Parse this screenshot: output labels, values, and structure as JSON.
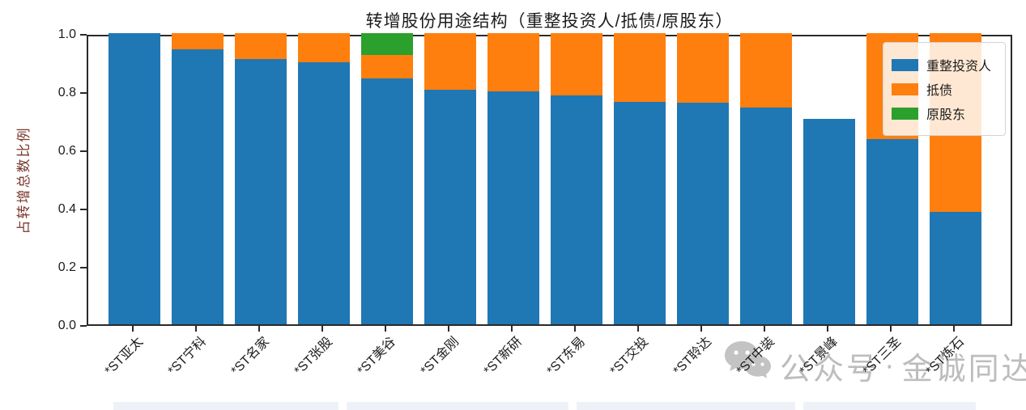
{
  "chart": {
    "title": "转增股份用途结构（重整投资人/抵债/原股东）",
    "ylabel": "占转增总数比例",
    "ylabel_color": "#7b372c",
    "yticks": [
      "0.0",
      "0.2",
      "0.4",
      "0.6",
      "0.8",
      "1.0"
    ]
  },
  "chart_data": {
    "type": "bar",
    "stacked": true,
    "orientation": "vertical",
    "title": "转增股份用途结构（重整投资人/抵债/原股东）",
    "xlabel": "",
    "ylabel": "占转增总数比例",
    "ylim": [
      0.0,
      1.0
    ],
    "grid": false,
    "legend_position": "upper right",
    "categories": [
      "*ST亚太",
      "*ST宁科",
      "*ST名家",
      "*ST张股",
      "*ST美谷",
      "*ST金刚",
      "*ST新研",
      "*ST东易",
      "*ST交投",
      "*ST聆达",
      "*ST中装",
      "*ST景峰",
      "*ST三圣",
      "*ST炼石"
    ],
    "series": [
      {
        "name": "重整投资人",
        "color": "#1f77b4",
        "values": [
          1.0,
          0.945,
          0.91,
          0.9,
          0.845,
          0.805,
          0.8,
          0.785,
          0.765,
          0.76,
          0.745,
          0.705,
          0.635,
          0.385
        ]
      },
      {
        "name": "抵债",
        "color": "#ff7f0e",
        "values": [
          0,
          0.055,
          0.09,
          0.1,
          0.08,
          0.195,
          0.2,
          0.215,
          0.235,
          0.24,
          0.255,
          0,
          0.365,
          0.615
        ]
      },
      {
        "name": "原股东",
        "color": "#2ca02c",
        "values": [
          0,
          0,
          0,
          0,
          0.075,
          0,
          0,
          0,
          0,
          0,
          0,
          0,
          0,
          0
        ]
      }
    ]
  },
  "watermark": {
    "icon": "wechat-icon",
    "prefix": "公众号",
    "separator": "·",
    "name": "金诚同达"
  }
}
